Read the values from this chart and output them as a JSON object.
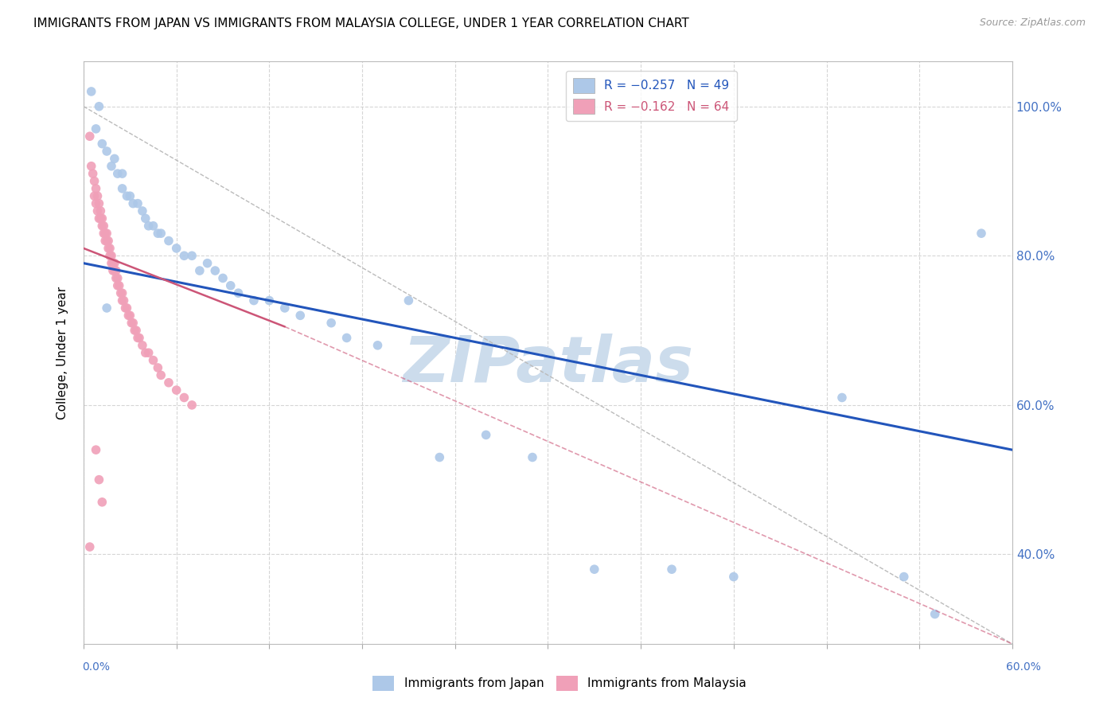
{
  "title": "IMMIGRANTS FROM JAPAN VS IMMIGRANTS FROM MALAYSIA COLLEGE, UNDER 1 YEAR CORRELATION CHART",
  "source": "Source: ZipAtlas.com",
  "ylabel": "College, Under 1 year",
  "ytick_labels": [
    "100.0%",
    "80.0%",
    "60.0%",
    "40.0%"
  ],
  "ytick_values": [
    1.0,
    0.8,
    0.6,
    0.4
  ],
  "xlim": [
    0.0,
    0.6
  ],
  "ylim": [
    0.28,
    1.06
  ],
  "japan_color": "#adc8e8",
  "malaysia_color": "#f0a0b8",
  "trend_japan_color": "#2255bb",
  "trend_malaysia_color": "#cc5577",
  "trend_japan_x0": 0.0,
  "trend_japan_y0": 0.79,
  "trend_japan_x1": 0.6,
  "trend_japan_y1": 0.54,
  "trend_malaysia_x0": 0.0,
  "trend_malaysia_y0": 0.81,
  "trend_malaysia_x1": 0.6,
  "trend_malaysia_y1": 0.28,
  "trend_malaysia_solid_x1": 0.13,
  "trend_malaysia_solid_y1": 0.705,
  "gray_line_x": [
    0.0,
    0.6
  ],
  "gray_line_y": [
    1.0,
    0.28
  ],
  "grid_color": "#cccccc",
  "watermark_color": "#ccdcec",
  "background_color": "#ffffff",
  "japan_points": [
    [
      0.005,
      1.02
    ],
    [
      0.008,
      0.97
    ],
    [
      0.01,
      1.0
    ],
    [
      0.012,
      0.95
    ],
    [
      0.015,
      0.94
    ],
    [
      0.018,
      0.92
    ],
    [
      0.02,
      0.93
    ],
    [
      0.022,
      0.91
    ],
    [
      0.025,
      0.91
    ],
    [
      0.025,
      0.89
    ],
    [
      0.028,
      0.88
    ],
    [
      0.03,
      0.88
    ],
    [
      0.032,
      0.87
    ],
    [
      0.035,
      0.87
    ],
    [
      0.038,
      0.86
    ],
    [
      0.04,
      0.85
    ],
    [
      0.042,
      0.84
    ],
    [
      0.045,
      0.84
    ],
    [
      0.048,
      0.83
    ],
    [
      0.05,
      0.83
    ],
    [
      0.055,
      0.82
    ],
    [
      0.06,
      0.81
    ],
    [
      0.065,
      0.8
    ],
    [
      0.07,
      0.8
    ],
    [
      0.075,
      0.78
    ],
    [
      0.08,
      0.79
    ],
    [
      0.085,
      0.78
    ],
    [
      0.09,
      0.77
    ],
    [
      0.095,
      0.76
    ],
    [
      0.1,
      0.75
    ],
    [
      0.11,
      0.74
    ],
    [
      0.12,
      0.74
    ],
    [
      0.13,
      0.73
    ],
    [
      0.14,
      0.72
    ],
    [
      0.015,
      0.73
    ],
    [
      0.16,
      0.71
    ],
    [
      0.17,
      0.69
    ],
    [
      0.19,
      0.68
    ],
    [
      0.21,
      0.74
    ],
    [
      0.23,
      0.53
    ],
    [
      0.26,
      0.56
    ],
    [
      0.29,
      0.53
    ],
    [
      0.33,
      0.38
    ],
    [
      0.38,
      0.38
    ],
    [
      0.42,
      0.37
    ],
    [
      0.49,
      0.61
    ],
    [
      0.53,
      0.37
    ],
    [
      0.55,
      0.32
    ],
    [
      0.58,
      0.83
    ]
  ],
  "malaysia_points": [
    [
      0.004,
      0.96
    ],
    [
      0.005,
      0.92
    ],
    [
      0.006,
      0.91
    ],
    [
      0.007,
      0.9
    ],
    [
      0.007,
      0.88
    ],
    [
      0.008,
      0.89
    ],
    [
      0.008,
      0.87
    ],
    [
      0.009,
      0.88
    ],
    [
      0.009,
      0.86
    ],
    [
      0.01,
      0.87
    ],
    [
      0.01,
      0.85
    ],
    [
      0.011,
      0.86
    ],
    [
      0.011,
      0.85
    ],
    [
      0.012,
      0.85
    ],
    [
      0.012,
      0.84
    ],
    [
      0.013,
      0.84
    ],
    [
      0.013,
      0.83
    ],
    [
      0.014,
      0.83
    ],
    [
      0.014,
      0.82
    ],
    [
      0.015,
      0.83
    ],
    [
      0.015,
      0.82
    ],
    [
      0.016,
      0.82
    ],
    [
      0.016,
      0.81
    ],
    [
      0.017,
      0.81
    ],
    [
      0.017,
      0.8
    ],
    [
      0.018,
      0.8
    ],
    [
      0.018,
      0.79
    ],
    [
      0.019,
      0.79
    ],
    [
      0.019,
      0.78
    ],
    [
      0.02,
      0.79
    ],
    [
      0.02,
      0.78
    ],
    [
      0.021,
      0.78
    ],
    [
      0.021,
      0.77
    ],
    [
      0.022,
      0.77
    ],
    [
      0.022,
      0.76
    ],
    [
      0.023,
      0.76
    ],
    [
      0.024,
      0.75
    ],
    [
      0.025,
      0.75
    ],
    [
      0.025,
      0.74
    ],
    [
      0.026,
      0.74
    ],
    [
      0.027,
      0.73
    ],
    [
      0.028,
      0.73
    ],
    [
      0.029,
      0.72
    ],
    [
      0.03,
      0.72
    ],
    [
      0.031,
      0.71
    ],
    [
      0.032,
      0.71
    ],
    [
      0.033,
      0.7
    ],
    [
      0.034,
      0.7
    ],
    [
      0.035,
      0.69
    ],
    [
      0.036,
      0.69
    ],
    [
      0.038,
      0.68
    ],
    [
      0.04,
      0.67
    ],
    [
      0.042,
      0.67
    ],
    [
      0.045,
      0.66
    ],
    [
      0.048,
      0.65
    ],
    [
      0.05,
      0.64
    ],
    [
      0.055,
      0.63
    ],
    [
      0.06,
      0.62
    ],
    [
      0.065,
      0.61
    ],
    [
      0.07,
      0.6
    ],
    [
      0.004,
      0.41
    ],
    [
      0.008,
      0.54
    ],
    [
      0.01,
      0.5
    ],
    [
      0.012,
      0.47
    ]
  ]
}
